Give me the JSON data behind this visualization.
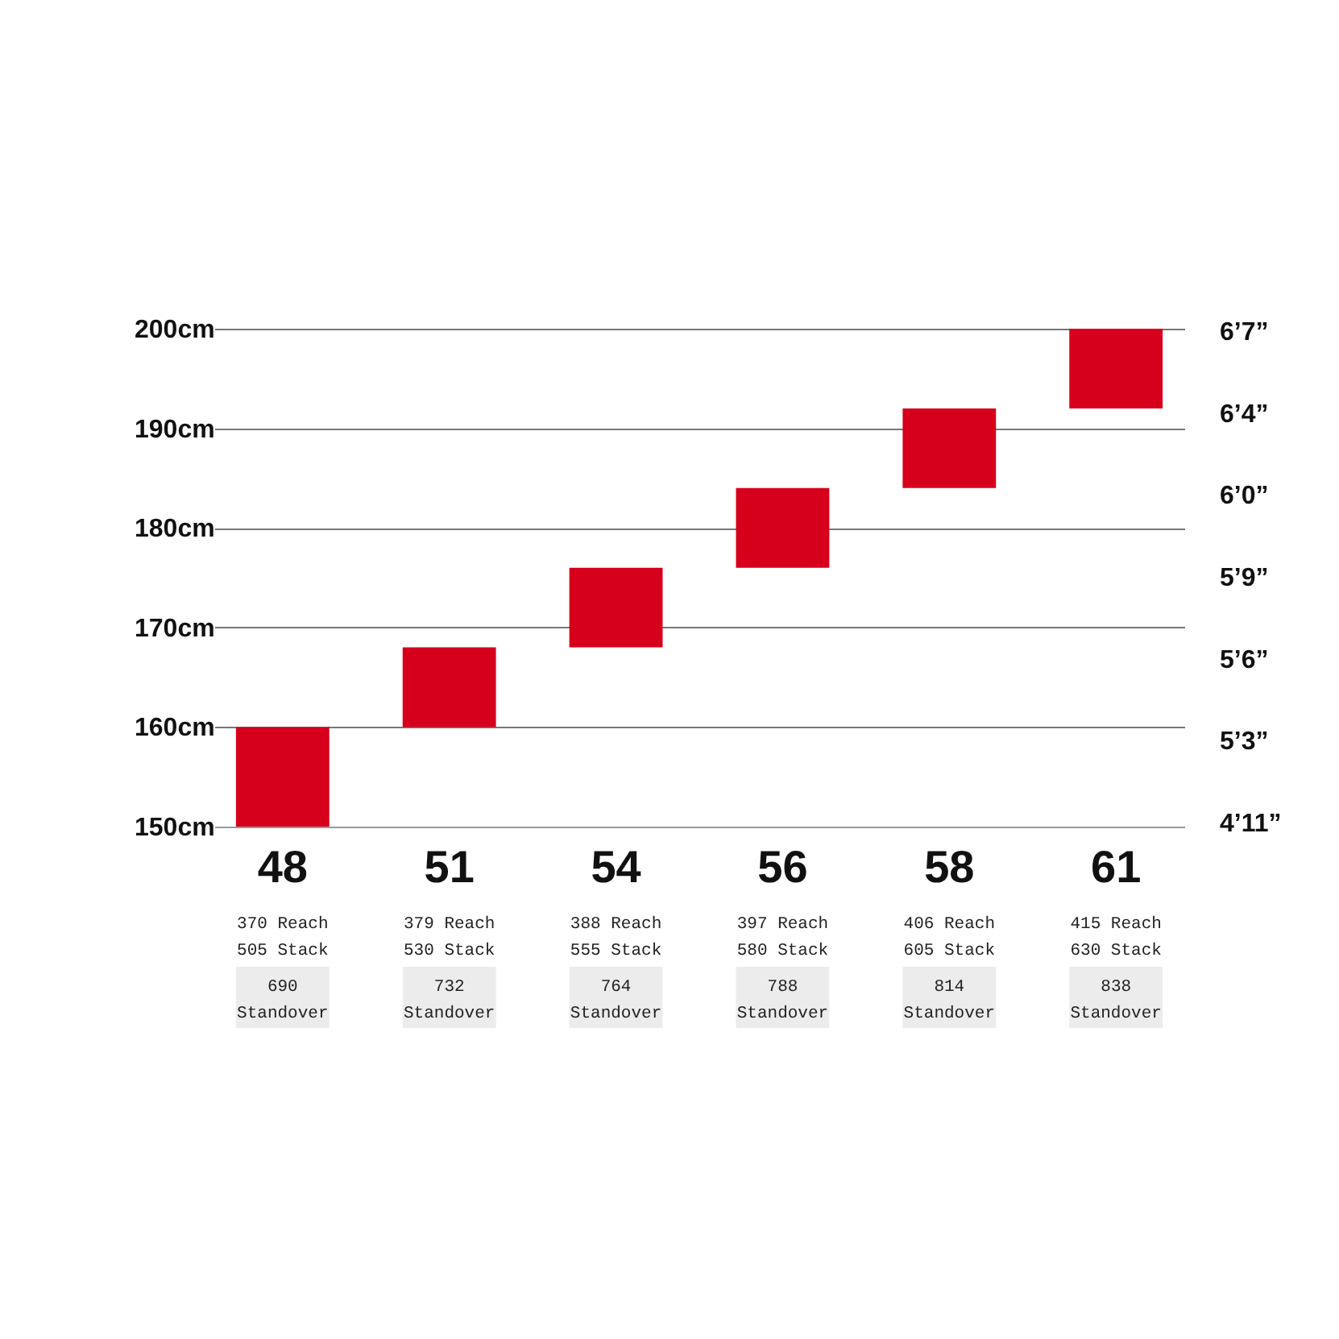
{
  "chart_data": {
    "type": "bar",
    "categories": [
      "48",
      "51",
      "54",
      "56",
      "58",
      "61"
    ],
    "values": [
      10,
      8,
      8,
      8,
      8,
      8
    ],
    "base": [
      150,
      160,
      168,
      176,
      184,
      192
    ],
    "color": "#d6001c",
    "ylim": [
      150,
      200
    ],
    "yticks": [
      {
        "value": 150,
        "label": "150cm"
      },
      {
        "value": 160,
        "label": "160cm"
      },
      {
        "value": 170,
        "label": "170cm"
      },
      {
        "value": 180,
        "label": "180cm"
      },
      {
        "value": 190,
        "label": "190cm"
      },
      {
        "value": 200,
        "label": "200cm"
      }
    ],
    "grid": "y",
    "annotations": [
      "6’7”",
      "6’4”",
      "6’0”",
      "5’9”",
      "5’6”",
      "5’3”",
      "4’11”",
      "370 Reach\n505 Stack",
      "690\nStandover",
      "379 Reach\n530 Stack",
      "732\nStandover",
      "388 Reach\n555 Stack",
      "764\nStandover",
      "397 Reach\n580 Stack",
      "788\nStandover",
      "406 Reach\n605 Stack",
      "814\nStandover",
      "415 Reach\n630 Stack",
      "838\nStandover"
    ]
  }
}
